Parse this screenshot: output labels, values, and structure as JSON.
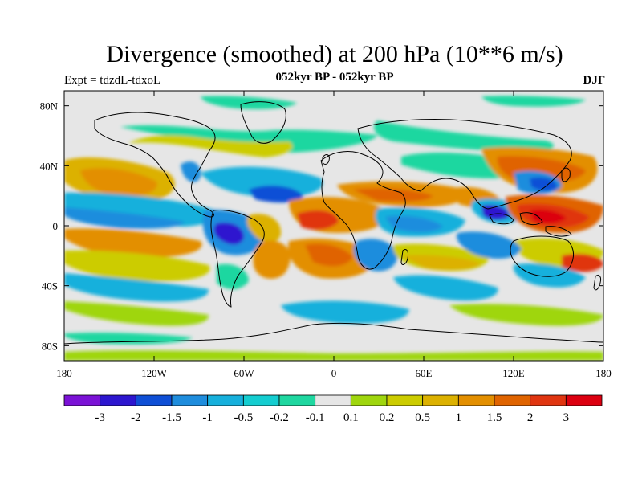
{
  "title": "Divergence (smoothed) at 200 hPa (10**6 m/s)",
  "subtitle": "052kyr BP - 052kyr BP",
  "left_label": "Expt = tdzdL-tdxoL",
  "right_label": "DJF",
  "axes": {
    "lat_ticks": [
      "80N",
      "40N",
      "0",
      "40S",
      "80S"
    ],
    "lon_ticks": [
      "180",
      "120W",
      "60W",
      "0",
      "60E",
      "120E",
      "180"
    ]
  },
  "colorbar": {
    "labels": [
      "-3",
      "-2",
      "-1.5",
      "-1",
      "-0.5",
      "-0.2",
      "-0.1",
      "0.1",
      "0.2",
      "0.5",
      "1",
      "1.5",
      "2",
      "3"
    ],
    "colors": [
      "#7b12d6",
      "#2d16cf",
      "#0f4fd6",
      "#1f8ddd",
      "#16b0dc",
      "#14cdd0",
      "#1fd7a0",
      "#e6e6e6",
      "#9fd60e",
      "#cccc00",
      "#dcb100",
      "#e38f00",
      "#e06400",
      "#e03510",
      "#dc0010"
    ]
  },
  "colors": {
    "neutral": "#e6e6e6",
    "coast": "#000000"
  }
}
